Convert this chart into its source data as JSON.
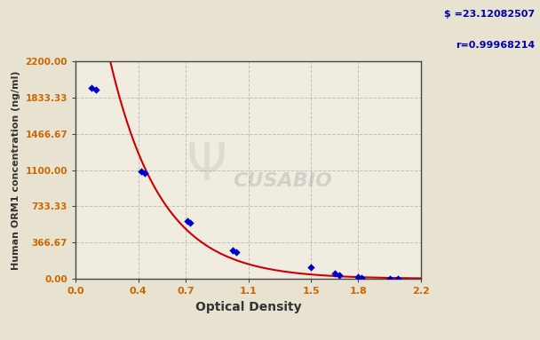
{
  "x_data": [
    0.1,
    0.13,
    0.42,
    0.44,
    0.71,
    0.73,
    1.0,
    1.02,
    1.5,
    1.65,
    1.68,
    1.8,
    1.82,
    2.0,
    2.05
  ],
  "y_data": [
    1933.33,
    1916.67,
    1083.33,
    1066.67,
    583.33,
    566.67,
    283.33,
    266.67,
    116.67,
    50.0,
    40.0,
    16.67,
    10.0,
    5.0,
    3.33
  ],
  "S_value": "$ =23.12082507",
  "r_value": "r=0.99968214",
  "xlabel": "Optical Density",
  "ylabel": "Human ORM1 concentration (ng/ml)",
  "xlim": [
    0.0,
    2.2
  ],
  "ylim": [
    0.0,
    2200.0
  ],
  "xtick_vals": [
    0.0,
    0.4,
    0.7,
    1.1,
    1.5,
    1.8,
    2.2
  ],
  "xtick_labels": [
    "0.0",
    "0.4",
    "0.7",
    "1.1",
    "1.5",
    "1.8",
    "2.2"
  ],
  "ytick_vals": [
    0.0,
    366.67,
    733.33,
    1100.0,
    1466.67,
    1833.33,
    2200.0
  ],
  "ytick_labels": [
    "0.00",
    "366.67",
    "733.33",
    "1100.00",
    "1466.67",
    "1833.33",
    "2200.00"
  ],
  "bg_color": "#e8e3d0",
  "plot_bg": "#f0ece0",
  "curve_color": "#cc0000",
  "point_color": "#0000cc",
  "grid_color": "#bbbbbb",
  "annot_color": "#0000aa",
  "tick_color": "#cc6600"
}
